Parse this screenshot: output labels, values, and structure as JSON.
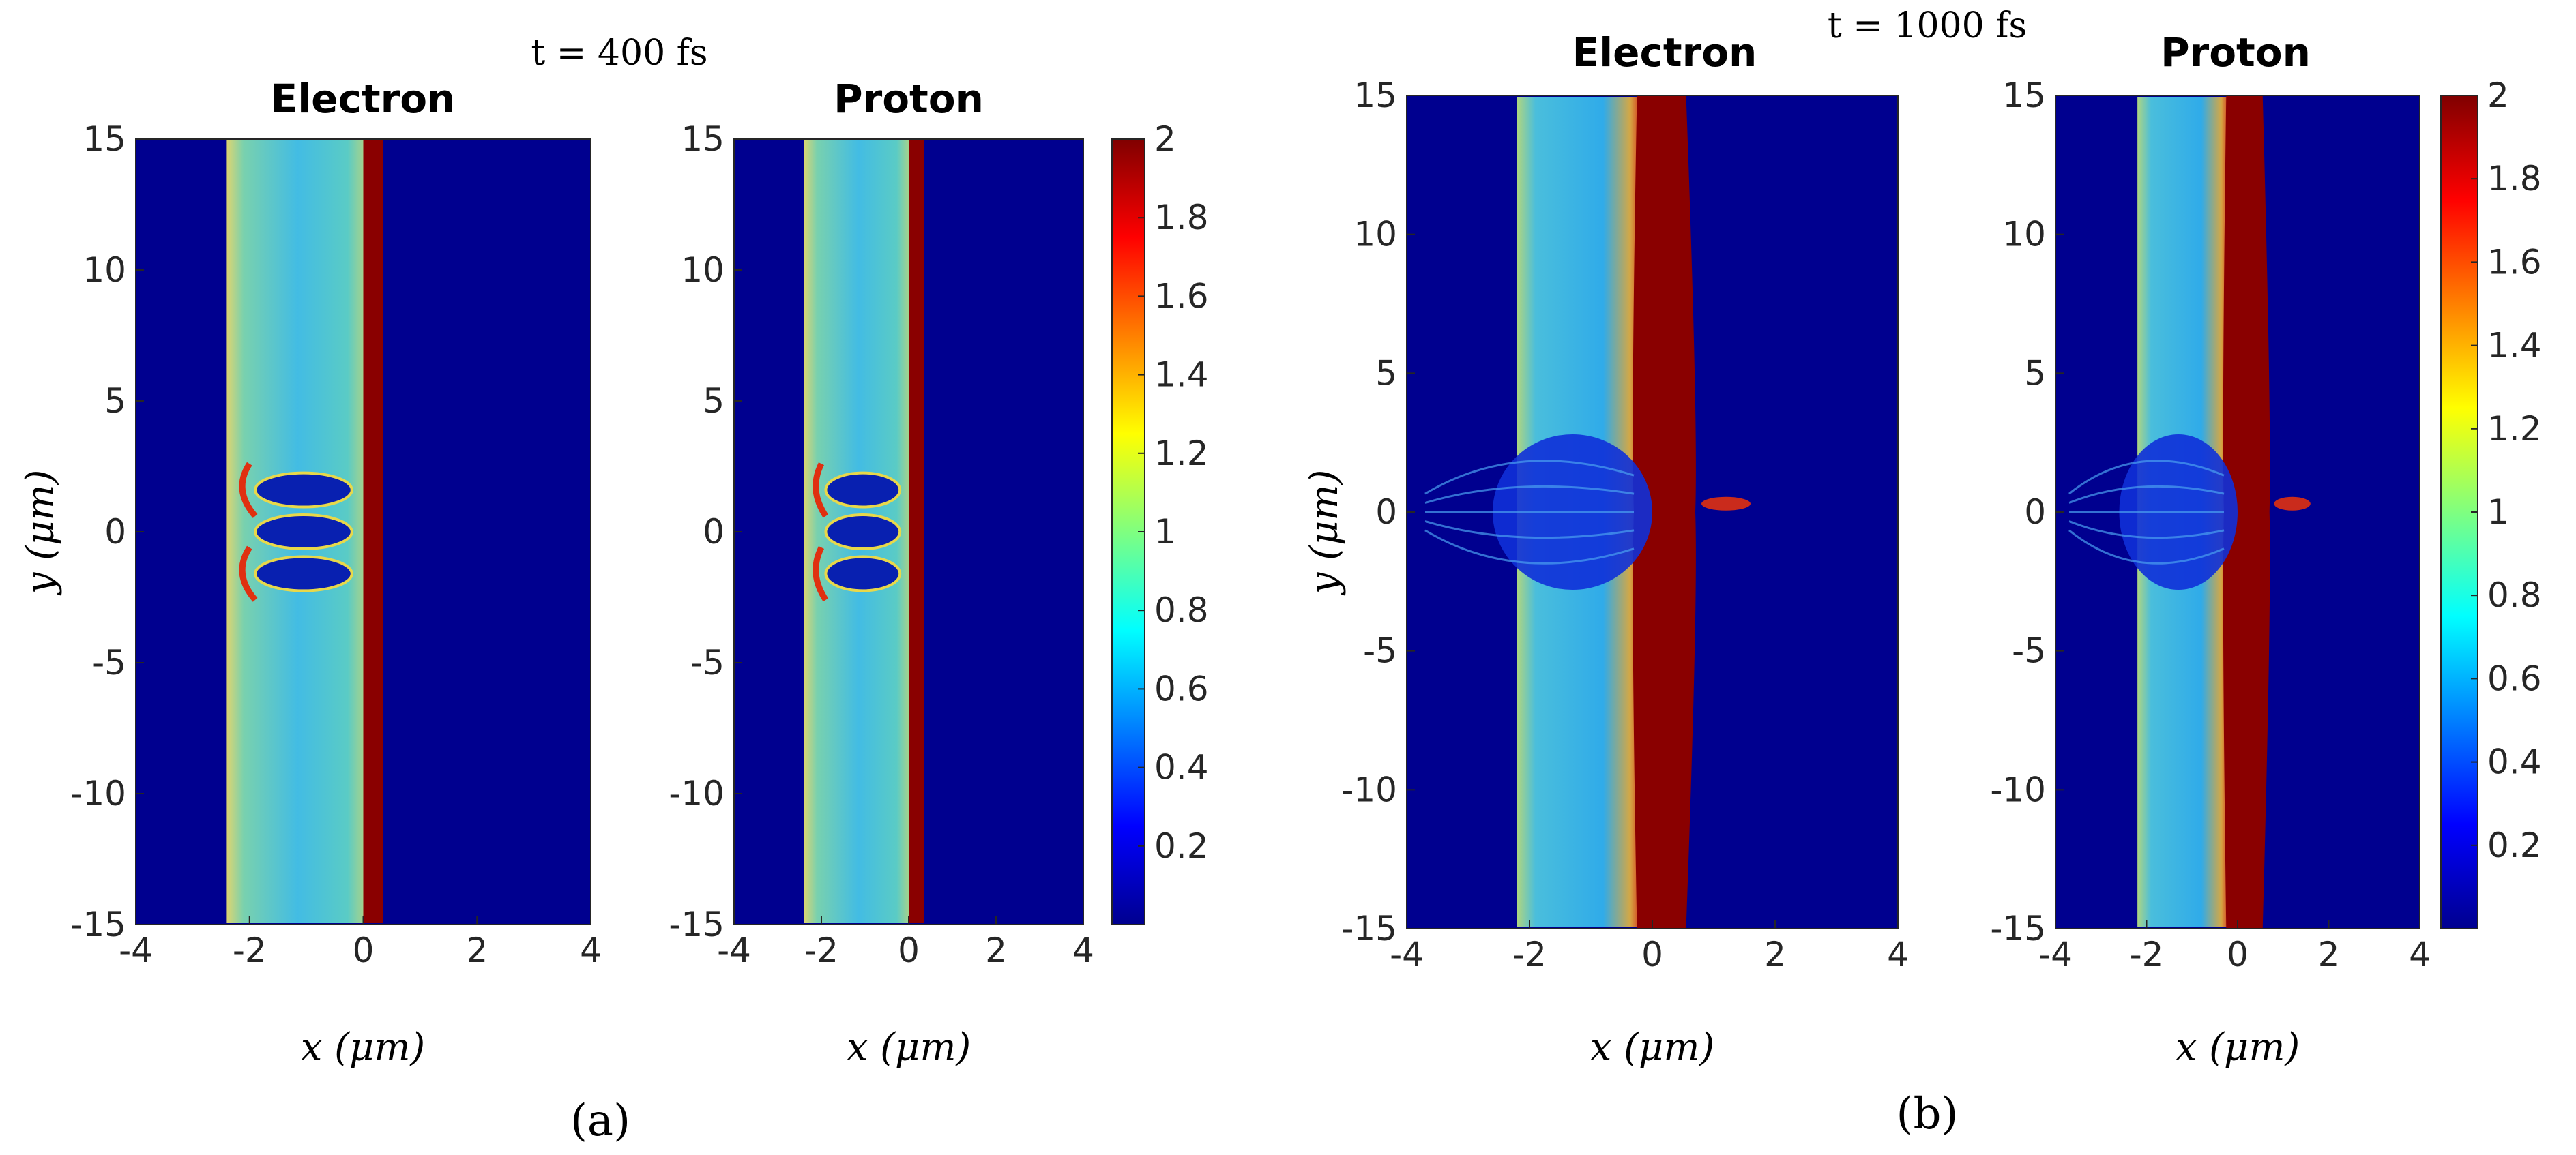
{
  "figure": {
    "groups": [
      {
        "id": "a",
        "time_label": "t = 400  fs",
        "sub_label": "(a)",
        "panels": [
          {
            "title": "Electron",
            "xlabel": "x (μm)",
            "ylabel": "y (μm)"
          },
          {
            "title": "Proton",
            "xlabel": "x (μm)",
            "ylabel": ""
          }
        ]
      },
      {
        "id": "b",
        "time_label": "t = 1000  fs",
        "sub_label": "(b)",
        "panels": [
          {
            "title": "Electron",
            "xlabel": "x (μm)",
            "ylabel": "y (μm)"
          },
          {
            "title": "Proton",
            "xlabel": "x (μm)",
            "ylabel": ""
          }
        ]
      }
    ]
  },
  "chart_data": [
    {
      "type": "heatmap",
      "group": "a",
      "title": "Electron",
      "time": "t = 400 fs",
      "xlabel": "x (μm)",
      "ylabel": "y (μm)",
      "xlim": [
        -4,
        4
      ],
      "ylim": [
        -15,
        15
      ],
      "xticks": [
        -4,
        -2,
        0,
        2,
        4
      ],
      "yticks": [
        15,
        10,
        5,
        0,
        -5,
        -10,
        -15
      ],
      "colormap": "jet",
      "clim": [
        0,
        2
      ],
      "features": {
        "foil_x_range": [
          -2.4,
          0.1
        ],
        "dense_layer_x": [
          0.0,
          0.35
        ],
        "cavities_y": [
          -1.6,
          0.0,
          1.6
        ]
      }
    },
    {
      "type": "heatmap",
      "group": "a",
      "title": "Proton",
      "time": "t = 400 fs",
      "xlabel": "x (μm)",
      "ylabel": "",
      "xlim": [
        -4,
        4
      ],
      "ylim": [
        -15,
        15
      ],
      "xticks": [
        -4,
        -2,
        0,
        2,
        4
      ],
      "yticks": [
        15,
        10,
        5,
        0,
        -5,
        -10,
        -15
      ],
      "colormap": "jet",
      "clim": [
        0,
        2
      ],
      "colorbar_ticks": [
        2,
        1.8,
        1.6,
        1.4,
        1.2,
        1,
        0.8,
        0.6,
        0.4,
        0.2
      ],
      "features": {
        "foil_x_range": [
          -2.4,
          0.1
        ],
        "dense_layer_x": [
          0.0,
          0.35
        ],
        "cavities_y": [
          -1.6,
          0.0,
          1.6
        ]
      }
    },
    {
      "type": "heatmap",
      "group": "b",
      "title": "Electron",
      "time": "t = 1000 fs",
      "xlabel": "x (μm)",
      "ylabel": "y (μm)",
      "xlim": [
        -4,
        4
      ],
      "ylim": [
        -15,
        15
      ],
      "xticks": [
        -4,
        -2,
        0,
        2,
        4
      ],
      "yticks": [
        15,
        10,
        5,
        0,
        -5,
        -10,
        -15
      ],
      "colormap": "jet",
      "clim": [
        0,
        2
      ],
      "features": {
        "foil_x_range": [
          -2.2,
          -0.2
        ],
        "dense_layer_x": [
          -0.3,
          0.7
        ],
        "bubble_y": [
          -3,
          3
        ]
      }
    },
    {
      "type": "heatmap",
      "group": "b",
      "title": "Proton",
      "time": "t = 1000 fs",
      "xlabel": "x (μm)",
      "ylabel": "",
      "xlim": [
        -4,
        4
      ],
      "ylim": [
        -15,
        15
      ],
      "xticks": [
        -4,
        -2,
        0,
        2,
        4
      ],
      "yticks": [
        15,
        10,
        5,
        0,
        -5,
        -10,
        -15
      ],
      "colormap": "jet",
      "clim": [
        0,
        2
      ],
      "colorbar_ticks": [
        2,
        1.8,
        1.6,
        1.4,
        1.2,
        1,
        0.8,
        0.6,
        0.4,
        0.2
      ],
      "features": {
        "foil_x_range": [
          -2.2,
          -0.2
        ],
        "dense_layer_x": [
          -0.3,
          0.7
        ],
        "bubble_y": [
          -3,
          3
        ]
      }
    }
  ],
  "colors": {
    "background": "#00008f",
    "foil": "#3cc2e6",
    "dense": "#8a0000",
    "edge_red": "#e03010",
    "edge_yellow": "#e8d84a"
  }
}
